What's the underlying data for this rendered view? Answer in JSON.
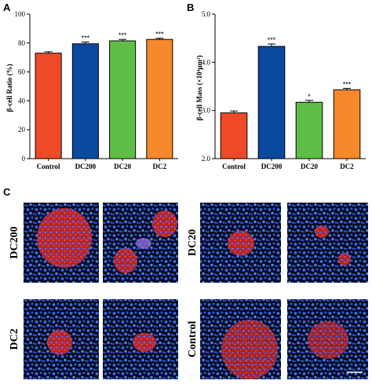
{
  "panel_labels": {
    "a": "A",
    "b": "B",
    "c": "C"
  },
  "chart_data": [
    {
      "type": "bar",
      "panel": "A",
      "categories": [
        "Control",
        "DC200",
        "DC20",
        "DC2"
      ],
      "values": [
        73,
        79.5,
        81.5,
        82.5
      ],
      "errors": [
        1.0,
        1.2,
        1.0,
        0.8
      ],
      "significance": [
        "",
        "***",
        "***",
        "***"
      ],
      "colors": [
        "#ee4a28",
        "#0a4a9e",
        "#5ebd48",
        "#f5882a"
      ],
      "ylabel": "β-cell Ratio (%)",
      "ylim": [
        0,
        100
      ],
      "yticks": [
        "0",
        "20",
        "40",
        "60",
        "80",
        "100"
      ],
      "ytick_values": [
        0,
        20,
        40,
        60,
        80,
        100
      ],
      "grid": false
    },
    {
      "type": "bar",
      "panel": "B",
      "categories": [
        "Control",
        "DC200",
        "DC20",
        "DC2"
      ],
      "values": [
        2.95,
        4.33,
        3.17,
        3.43
      ],
      "errors": [
        0.04,
        0.05,
        0.04,
        0.03
      ],
      "significance": [
        "",
        "***",
        "*",
        "***"
      ],
      "colors": [
        "#ee4a28",
        "#0a4a9e",
        "#5ebd48",
        "#f5882a"
      ],
      "ylabel": "β-cell Mass (×10⁴μm²)",
      "ylim": [
        2.0,
        5.0
      ],
      "yticks": [
        "2.0",
        "3.0",
        "4.0",
        "5.0"
      ],
      "ytick_values": [
        2.0,
        3.0,
        4.0,
        5.0
      ],
      "grid": false
    }
  ],
  "micrographs": {
    "group_labels": {
      "dc200": "DC200",
      "dc20": "DC20",
      "dc2": "DC2",
      "control": "Control"
    }
  }
}
